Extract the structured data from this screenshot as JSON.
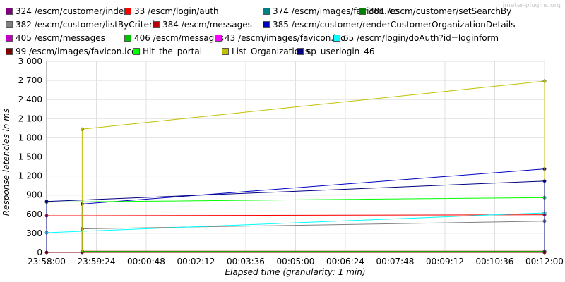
{
  "watermark": "jmeter-plugins.org",
  "chart_data": {
    "type": "line",
    "xlabel": "Elapsed time (granularity: 1 min)",
    "ylabel": "Response latencies in ms",
    "ylim": [
      0,
      3000
    ],
    "y_ticks": [
      "0",
      "300",
      "600",
      "900",
      "1 200",
      "1 500",
      "1 800",
      "2 100",
      "2 400",
      "2 700",
      "3 000"
    ],
    "x_ticks": [
      "23:58:00",
      "23:59:24",
      "00:00:48",
      "00:02:12",
      "00:03:36",
      "00:05:00",
      "00:06:24",
      "00:07:48",
      "00:09:12",
      "00:10:36",
      "00:12:00"
    ],
    "x_range": [
      "23:58:00",
      "00:12:00"
    ],
    "grid": true,
    "legend_position": "top",
    "series": [
      {
        "name": "324 /escm/customer/index",
        "color": "#800080",
        "points": [
          [
            "23:59:00",
            0
          ],
          [
            "00:12:00",
            0
          ]
        ]
      },
      {
        "name": "33 /escm/login/auth",
        "color": "#ff0000",
        "points": [
          [
            "23:58:00",
            575
          ],
          [
            "00:12:00",
            590
          ]
        ]
      },
      {
        "name": "374 /escm/images/favicon.ico",
        "color": "#008080",
        "points": [
          [
            "23:59:00",
            15
          ],
          [
            "00:12:00",
            15
          ]
        ]
      },
      {
        "name": "381 /escm/customer/setSearchBy",
        "color": "#008000",
        "points": [
          [
            "23:59:00",
            10
          ],
          [
            "00:12:00",
            10
          ]
        ]
      },
      {
        "name": "382 /escm/customer/listByCriteria",
        "color": "#808080",
        "points": [
          [
            "23:59:00",
            370
          ],
          [
            "00:12:00",
            490
          ]
        ]
      },
      {
        "name": "384 /escm/messages",
        "color": "#c00000",
        "points": [
          [
            "23:59:00",
            20
          ],
          [
            "00:12:00",
            20
          ]
        ]
      },
      {
        "name": "385 /escm/customer/renderCustomerOrganizationDetails",
        "color": "#0000c0",
        "points": [
          [
            "23:59:00",
            760
          ],
          [
            "00:12:00",
            1310
          ]
        ]
      },
      {
        "name": "405 /escm/messages",
        "color": "#c000c0",
        "points": [
          [
            "23:58:00",
            0
          ],
          [
            "00:12:00",
            0
          ]
        ]
      },
      {
        "name": "406 /escm/messages",
        "color": "#00c000",
        "points": [
          [
            "23:59:00",
            15
          ],
          [
            "00:12:00",
            15
          ]
        ]
      },
      {
        "name": "43 /escm/images/favicon.ico",
        "color": "#ff00ff",
        "points": [
          [
            "23:58:00",
            0
          ],
          [
            "00:12:00",
            0
          ]
        ]
      },
      {
        "name": "65 /escm/login/doAuth?id=loginform",
        "color": "#00ffff",
        "points": [
          [
            "23:58:00",
            310
          ],
          [
            "00:12:00",
            620
          ]
        ]
      },
      {
        "name": "99 /escm/images/favicon.ico",
        "color": "#800000",
        "points": [
          [
            "23:58:00",
            0
          ],
          [
            "00:12:00",
            0
          ]
        ]
      },
      {
        "name": "Hit_the_portal",
        "color": "#00ff00",
        "points": [
          [
            "23:58:00",
            790
          ],
          [
            "00:12:00",
            860
          ]
        ]
      },
      {
        "name": "List_Organizations",
        "color": "#c0c000",
        "points": [
          [
            "23:59:00",
            1935
          ],
          [
            "00:12:00",
            2690
          ]
        ]
      },
      {
        "name": "sp_userlogin_46",
        "color": "#000080",
        "points": [
          [
            "23:58:00",
            800
          ],
          [
            "00:12:00",
            1120
          ]
        ]
      }
    ]
  }
}
